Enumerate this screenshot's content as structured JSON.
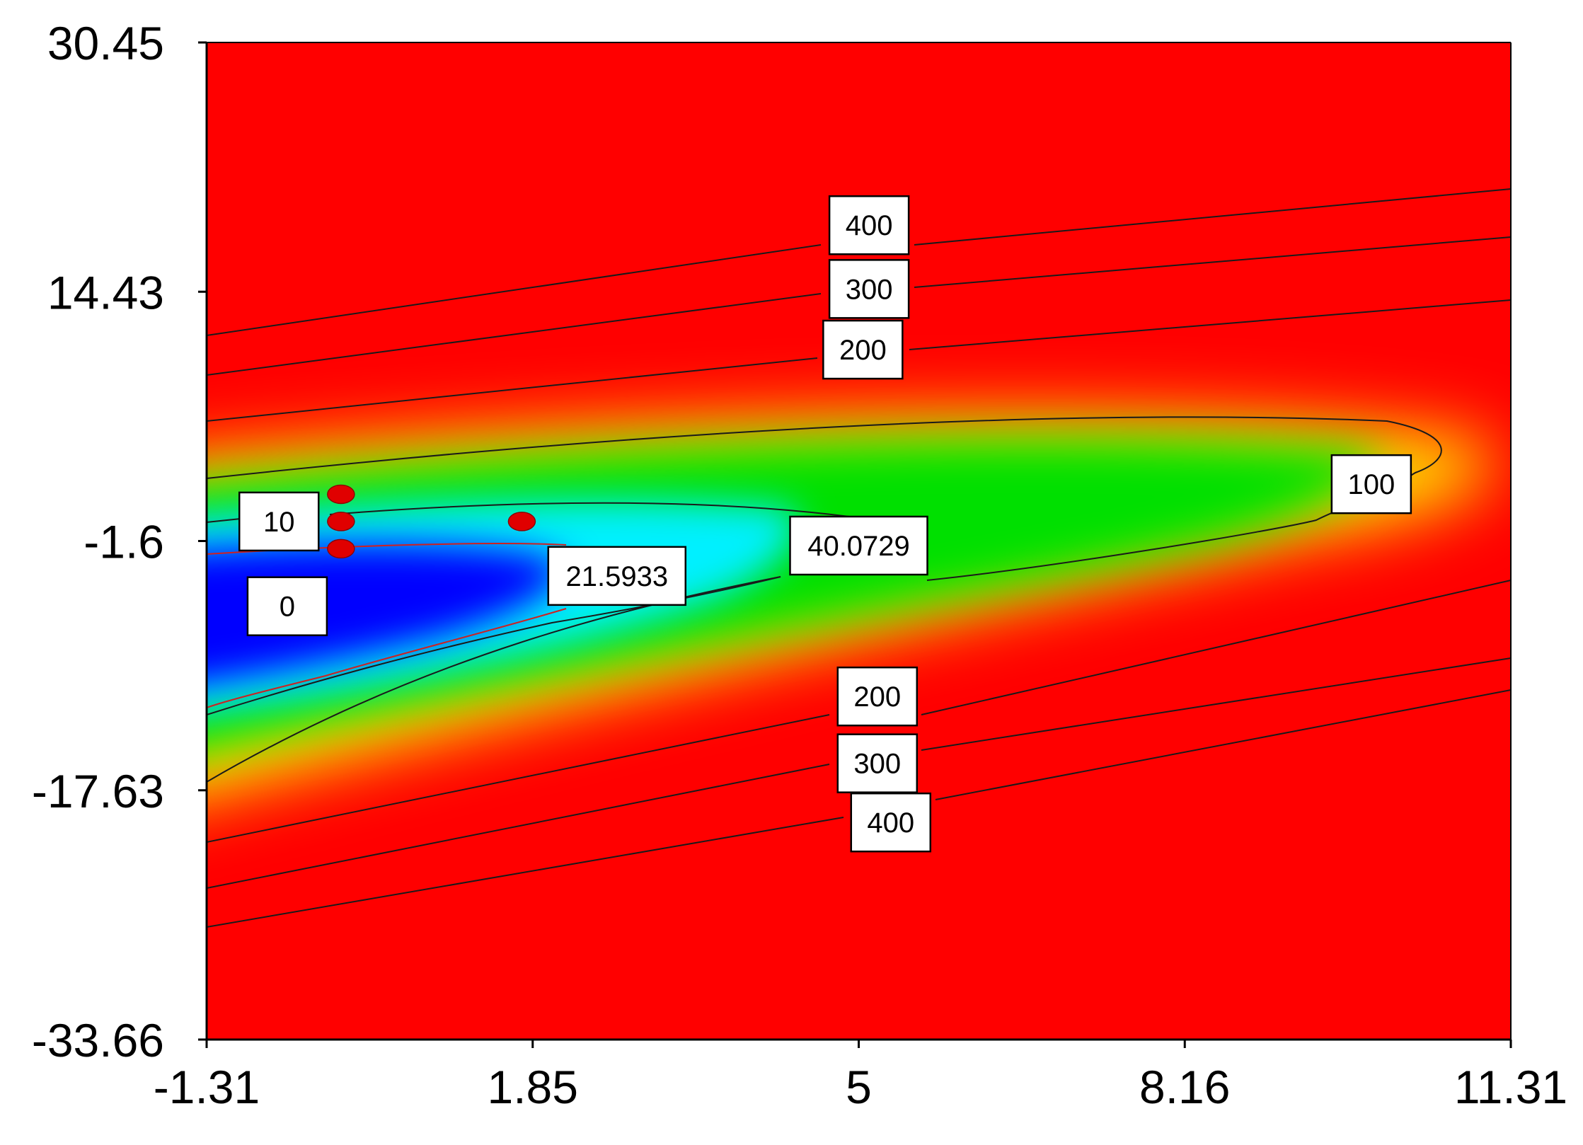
{
  "chart_data": {
    "type": "heatmap",
    "subtype": "contour",
    "title": "",
    "xlabel": "",
    "ylabel": "",
    "xlim": [
      -1.31,
      11.31
    ],
    "ylim": [
      -33.66,
      30.45
    ],
    "x_ticks": [
      "-1.31",
      "1.85",
      "5",
      "8.16",
      "11.31"
    ],
    "y_ticks": [
      "30.45",
      "14.43",
      "-1.6",
      "-17.63",
      "-33.66"
    ],
    "grid": false,
    "colormap": [
      "#0000ff",
      "#00ffff",
      "#00ff00",
      "#ffff00",
      "#ff0000"
    ],
    "background_color": "#ff0000",
    "low_region_center": {
      "x": -1.0,
      "y": -6.0
    },
    "contour_labels": [
      {
        "text": "400",
        "x": 5.1,
        "y": 18.7
      },
      {
        "text": "300",
        "x": 5.1,
        "y": 14.6
      },
      {
        "text": "200",
        "x": 5.04,
        "y": 10.7
      },
      {
        "text": "10",
        "x": -0.61,
        "y": -0.35
      },
      {
        "text": "0",
        "x": -0.53,
        "y": -5.8
      },
      {
        "text": "21.5933",
        "x": 2.66,
        "y": -3.85
      },
      {
        "text": "40.0729",
        "x": 5.0,
        "y": -1.9
      },
      {
        "text": "100",
        "x": 9.96,
        "y": 2.05
      },
      {
        "text": "200",
        "x": 5.18,
        "y": -11.6
      },
      {
        "text": "300",
        "x": 5.18,
        "y": -15.9
      },
      {
        "text": "400",
        "x": 5.31,
        "y": -19.7
      }
    ],
    "points": [
      {
        "x": -0.01,
        "y": 1.4
      },
      {
        "x": -0.01,
        "y": -0.35
      },
      {
        "x": -0.01,
        "y": -2.1
      },
      {
        "x": 1.74,
        "y": -0.35
      }
    ],
    "point_color": "#e00000"
  }
}
